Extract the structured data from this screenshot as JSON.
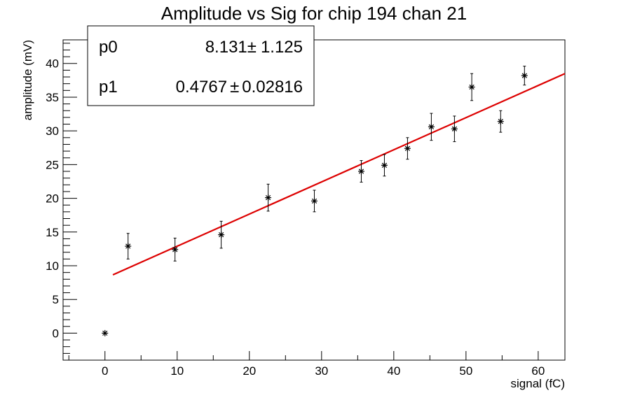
{
  "chart_data": {
    "type": "scatter",
    "title": "Amplitude vs Sig for chip 194 chan 21",
    "xlabel": "signal (fC)",
    "ylabel": "amplitude (mV)",
    "xlim": [
      -5.8,
      63.7
    ],
    "ylim": [
      -4.0,
      43.5
    ],
    "x_ticks": [
      0,
      10,
      20,
      30,
      40,
      50,
      60
    ],
    "y_ticks": [
      0,
      5,
      10,
      15,
      20,
      25,
      30,
      35,
      40
    ],
    "grid": false,
    "series": [
      {
        "marker": "star",
        "color": "#000000",
        "points": [
          {
            "x": 0.0,
            "y": 0.0,
            "err": 0.0
          },
          {
            "x": 3.2,
            "y": 12.9,
            "err": 1.9
          },
          {
            "x": 9.7,
            "y": 12.4,
            "err": 1.7
          },
          {
            "x": 16.1,
            "y": 14.6,
            "err": 2.0
          },
          {
            "x": 22.6,
            "y": 20.1,
            "err": 2.0
          },
          {
            "x": 29.0,
            "y": 19.6,
            "err": 1.6
          },
          {
            "x": 35.5,
            "y": 24.0,
            "err": 1.6
          },
          {
            "x": 38.7,
            "y": 24.9,
            "err": 1.6
          },
          {
            "x": 41.9,
            "y": 27.4,
            "err": 1.6
          },
          {
            "x": 45.2,
            "y": 30.6,
            "err": 2.0
          },
          {
            "x": 48.4,
            "y": 30.3,
            "err": 1.9
          },
          {
            "x": 50.8,
            "y": 36.5,
            "err": 2.0
          },
          {
            "x": 54.8,
            "y": 31.4,
            "err": 1.6
          },
          {
            "x": 58.1,
            "y": 38.2,
            "err": 1.4
          }
        ]
      }
    ],
    "fit": {
      "color": "#dd0000",
      "p0": 8.131,
      "p1": 0.4767,
      "x_range": [
        1.1,
        63.7
      ]
    }
  },
  "stats_box": {
    "p0_name": "p0",
    "p0_value": "8.131",
    "p0_err": "1.125",
    "p1_name": "p1",
    "p1_value": "0.4767",
    "p1_err": "0.02816",
    "pm_symbol": "±"
  }
}
